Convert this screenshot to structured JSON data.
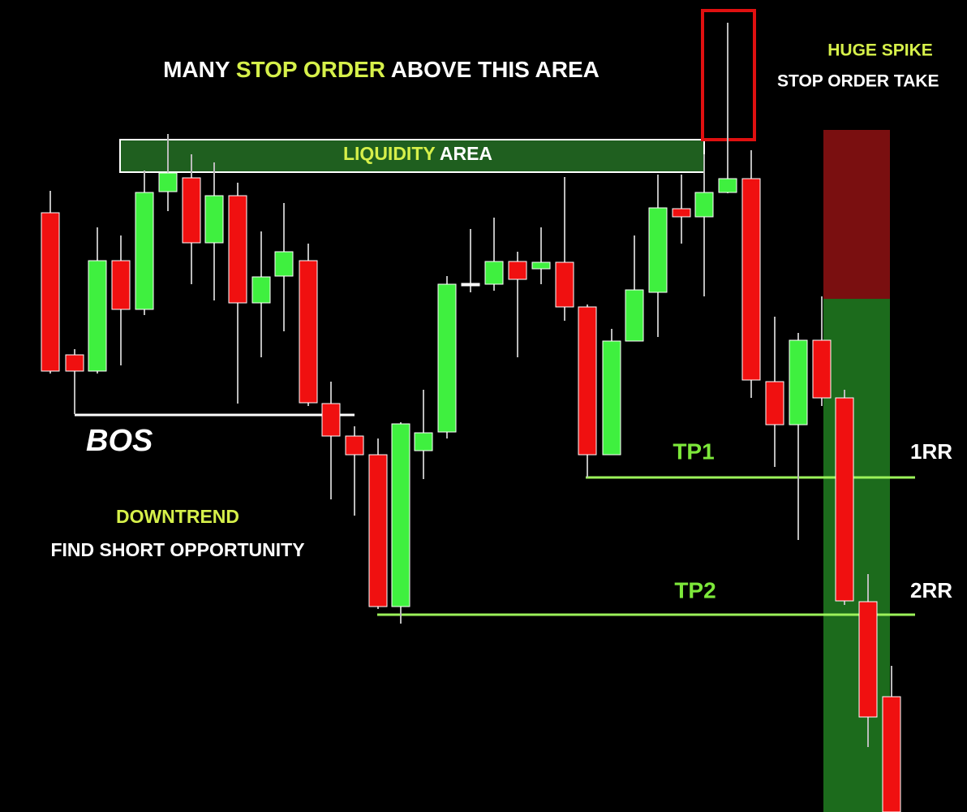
{
  "header": {
    "parts": [
      "MANY",
      "STOP ORDER",
      "ABOVE THIS AREA"
    ]
  },
  "liquidity": {
    "parts": [
      "LIQUIDITY",
      "AREA"
    ]
  },
  "spike": {
    "title": "HUGE SPIKE",
    "subtitle": "STOP ORDER TAKE"
  },
  "bos": "BOS",
  "trend": {
    "title": "DOWNTREND",
    "subtitle": "FIND SHORT OPPORTUNITY"
  },
  "targets": [
    {
      "label": "TP1",
      "rr": "1RR"
    },
    {
      "label": "TP2",
      "rr": "2RR"
    }
  ]
}
